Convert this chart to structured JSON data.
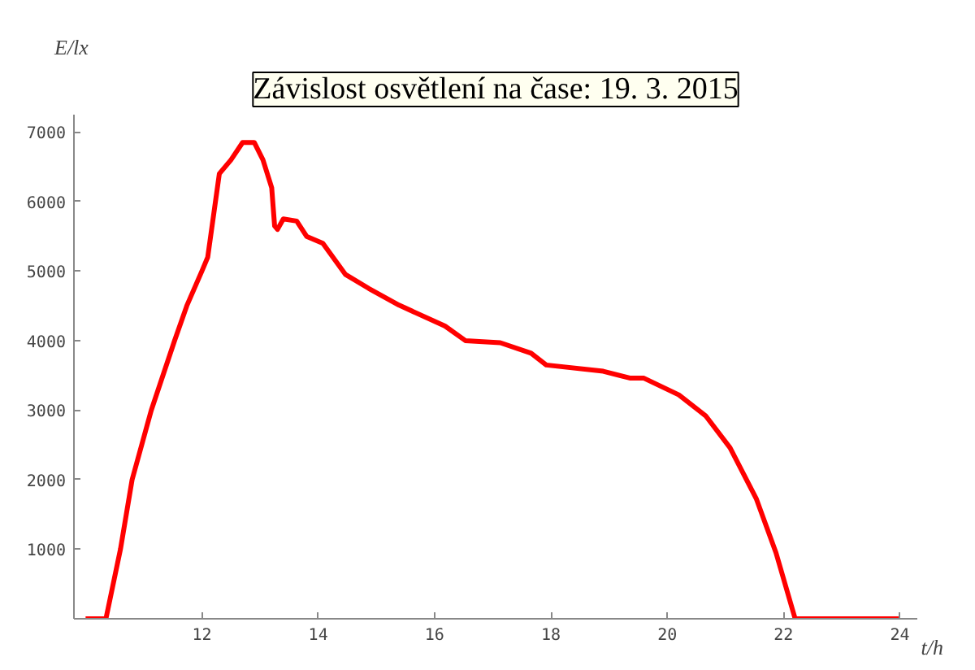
{
  "chart_data": {
    "type": "line",
    "title": "Závislost osvětlení na čase: 19. 3. 2015",
    "xlabel": "t/h",
    "ylabel": "E/lx",
    "x": [
      10.0,
      10.2,
      10.35,
      10.6,
      10.8,
      11.13,
      11.53,
      11.74,
      12.0,
      12.1,
      12.3,
      12.5,
      12.7,
      12.9,
      13.05,
      13.2,
      13.25,
      13.3,
      13.4,
      13.63,
      13.8,
      14.08,
      14.47,
      14.87,
      15.39,
      16.18,
      16.53,
      17.13,
      17.66,
      17.92,
      18.9,
      19.37,
      19.6,
      20.2,
      20.66,
      21.08,
      21.53,
      21.87,
      22.2,
      23.0,
      24.0
    ],
    "series": [
      {
        "color": "#ff0000",
        "values": [
          0,
          0,
          0,
          1000,
          2000,
          3000,
          4000,
          4500,
          5000,
          5200,
          6400,
          6600,
          6850,
          6850,
          6600,
          6200,
          5650,
          5600,
          5750,
          5720,
          5500,
          5400,
          4950,
          4750,
          4510,
          4210,
          4000,
          3970,
          3820,
          3650,
          3560,
          3460,
          3460,
          3220,
          2920,
          2460,
          1730,
          950,
          0,
          0,
          0
        ]
      }
    ],
    "xlim": [
      9.8,
      24.3
    ],
    "ylim": [
      0,
      7250
    ],
    "xticks": [
      12,
      14,
      16,
      18,
      20,
      22,
      24
    ],
    "yticks": [
      1000,
      2000,
      3000,
      4000,
      5000,
      6000,
      7000
    ],
    "grid": false,
    "marker": "none",
    "line_style": "solid"
  }
}
